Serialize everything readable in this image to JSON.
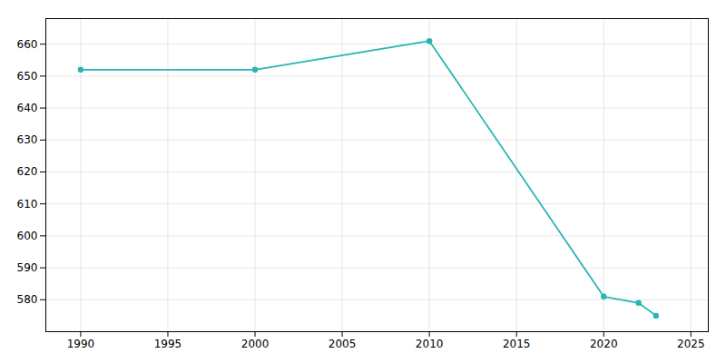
{
  "chart_data": {
    "type": "line",
    "x": [
      1990,
      2000,
      2010,
      2020,
      2022,
      2023
    ],
    "values": [
      652,
      652,
      661,
      581,
      579,
      575
    ],
    "color": "#2ab5b5",
    "marker": "circle",
    "xlim": [
      1988,
      2026
    ],
    "ylim": [
      570,
      668
    ],
    "xticks": [
      1990,
      1995,
      2000,
      2005,
      2010,
      2015,
      2020,
      2025
    ],
    "yticks": [
      580,
      590,
      600,
      610,
      620,
      630,
      640,
      650,
      660
    ],
    "grid": true
  }
}
